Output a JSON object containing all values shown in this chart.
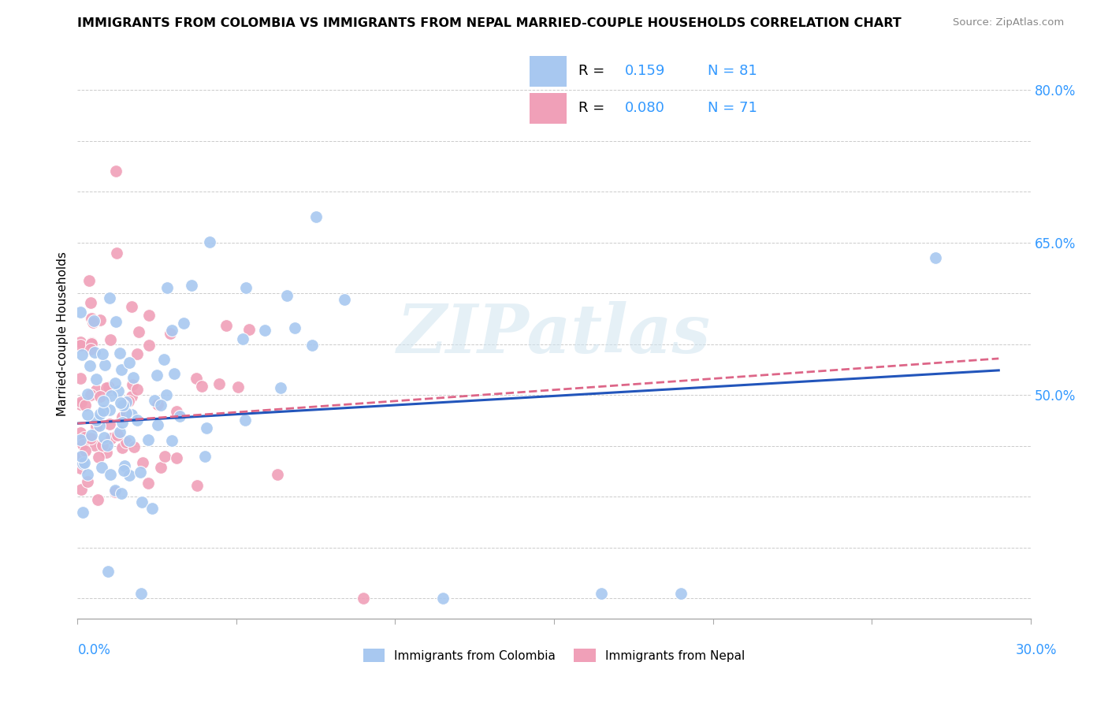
{
  "title": "IMMIGRANTS FROM COLOMBIA VS IMMIGRANTS FROM NEPAL MARRIED-COUPLE HOUSEHOLDS CORRELATION CHART",
  "source": "Source: ZipAtlas.com",
  "ylabel": "Married-couple Households",
  "xlim": [
    0.0,
    0.3
  ],
  "ylim": [
    0.28,
    0.84
  ],
  "colombia_R": 0.159,
  "colombia_N": 81,
  "nepal_R": 0.08,
  "nepal_N": 71,
  "colombia_color": "#a8c8f0",
  "nepal_color": "#f0a0b8",
  "trend_colombia_color": "#2255bb",
  "trend_nepal_color": "#dd6688",
  "watermark": "ZIPatlas",
  "background_color": "#ffffff",
  "grid_color": "#cccccc",
  "ytick_labels": [
    "",
    "",
    "",
    "",
    "50.0%",
    "",
    "",
    "65.0%",
    "",
    "",
    "80.0%"
  ],
  "ytick_vals": [
    0.3,
    0.35,
    0.4,
    0.45,
    0.5,
    0.55,
    0.6,
    0.65,
    0.7,
    0.75,
    0.8
  ],
  "label_color": "#3399ff",
  "colombia_label": "Immigrants from Colombia",
  "nepal_label": "Immigrants from Nepal"
}
